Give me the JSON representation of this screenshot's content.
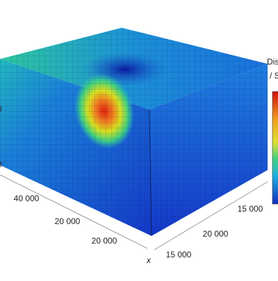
{
  "labels": {
    "left_a": "0",
    "left_b": "0",
    "axis_ticks": [
      "40 000",
      "20 000",
      "20 000",
      "15 000",
      "20 000",
      "15 000"
    ],
    "x_axis": "x",
    "colorbar_title": "Dis",
    "colorbar_unit": "/ S"
  }
}
